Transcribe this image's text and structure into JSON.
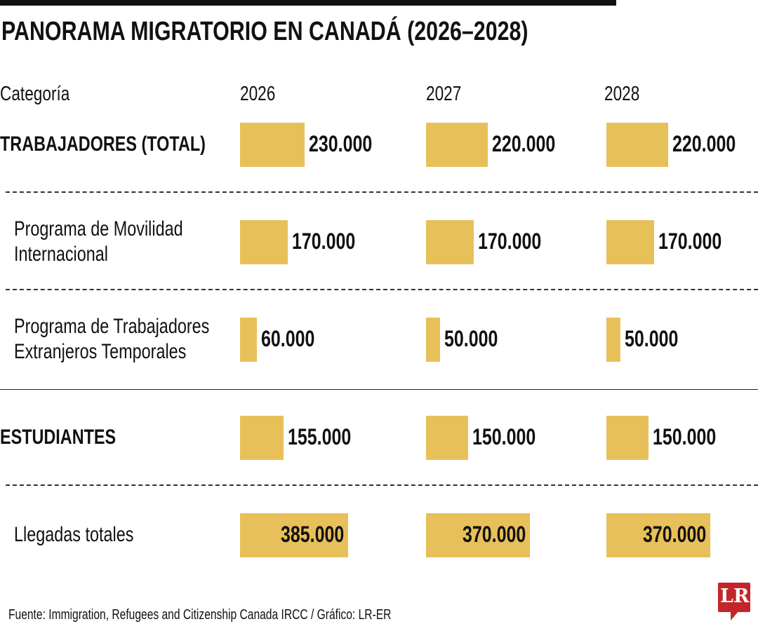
{
  "title": "PANORAMA MIGRATORIO EN CANADÁ (2026–2028)",
  "source": "Fuente: Immigration, Refugees and Citizenship Canada IRCC / Gráfico: LR-ER",
  "logo_text": "LR",
  "chart_data": {
    "type": "table",
    "column_header": "Categoría",
    "years": [
      "2026",
      "2027",
      "2028"
    ],
    "bar_color": "#e8c05a",
    "rows": [
      {
        "label": "TRABAJADORES (TOTAL)",
        "bold": true,
        "values": [
          230000,
          220000,
          220000
        ],
        "labels": [
          "230.000",
          "220.000",
          "220.000"
        ]
      },
      {
        "label": "Programa de Movilidad Internacional",
        "lines": [
          "Programa de Movilidad",
          "Internacional"
        ],
        "bold": false,
        "values": [
          170000,
          170000,
          170000
        ],
        "labels": [
          "170.000",
          "170.000",
          "170.000"
        ]
      },
      {
        "label": "Programa de Trabajadores Extranjeros Temporales",
        "lines": [
          "Programa de Trabajadores",
          "Extranjeros Temporales"
        ],
        "bold": false,
        "values": [
          60000,
          50000,
          50000
        ],
        "labels": [
          "60.000",
          "50.000",
          "50.000"
        ]
      },
      {
        "label": "ESTUDIANTES",
        "bold": true,
        "values": [
          155000,
          150000,
          150000
        ],
        "labels": [
          "155.000",
          "150.000",
          "150.000"
        ]
      },
      {
        "label": "Llegadas totales",
        "bold": false,
        "values": [
          385000,
          370000,
          370000
        ],
        "labels": [
          "385.000",
          "370.000",
          "370.000"
        ]
      }
    ]
  }
}
